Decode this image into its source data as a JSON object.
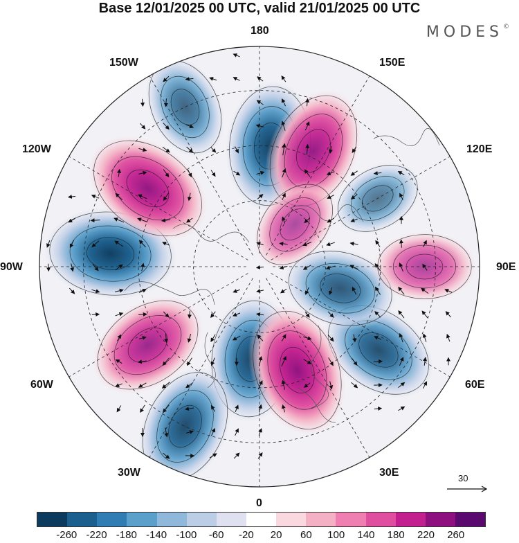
{
  "title": "Base 12/01/2025 00 UTC, valid 21/01/2025 00 UTC",
  "brand": "MODES",
  "brand_mark": "©",
  "longitude_labels": {
    "deg180": "180",
    "deg150e": "150E",
    "deg120e": "120E",
    "deg90e": "90E",
    "deg60e": "60E",
    "deg30e": "30E",
    "deg0": "0",
    "deg30w": "30W",
    "deg60w": "60W",
    "deg90w": "90W",
    "deg120w": "120W",
    "deg150w": "150W"
  },
  "vector_scale_label": "30",
  "colorbar": {
    "colors": [
      "#0d3b5e",
      "#1b5f8e",
      "#2f7db3",
      "#5b9fcb",
      "#8fb8db",
      "#bccde6",
      "#dfe1f0",
      "#ffffff",
      "#f9d9df",
      "#f4b0c4",
      "#ee7fb0",
      "#e04f9f",
      "#c21f8f",
      "#8e0f7e",
      "#5a0a6e"
    ],
    "tick_labels": [
      "-260",
      "-220",
      "-180",
      "-140",
      "-100",
      "-60",
      "-20",
      "20",
      "60",
      "100",
      "140",
      "180",
      "220",
      "260"
    ]
  },
  "anomaly_centers": [
    {
      "sign": "negative",
      "strength": 0.95,
      "lon": -95,
      "colat": 0.68
    },
    {
      "sign": "negative",
      "strength": 0.9,
      "lon": 175,
      "colat": 0.55
    },
    {
      "sign": "negative",
      "strength": 0.5,
      "lon": -155,
      "colat": 0.8
    },
    {
      "sign": "negative",
      "strength": 0.85,
      "lon": -5,
      "colat": 0.42
    },
    {
      "sign": "negative",
      "strength": 0.8,
      "lon": -25,
      "colat": 0.8
    },
    {
      "sign": "negative",
      "strength": 0.75,
      "lon": 55,
      "colat": 0.66
    },
    {
      "sign": "negative",
      "strength": 0.65,
      "lon": 75,
      "colat": 0.38
    },
    {
      "sign": "negative",
      "strength": 0.3,
      "lon": 120,
      "colat": 0.62
    },
    {
      "sign": "positive",
      "strength": 0.9,
      "lon": -125,
      "colat": 0.62
    },
    {
      "sign": "positive",
      "strength": 0.85,
      "lon": 155,
      "colat": 0.58
    },
    {
      "sign": "positive",
      "strength": 0.75,
      "lon": -55,
      "colat": 0.62
    },
    {
      "sign": "positive",
      "strength": 0.95,
      "lon": 20,
      "colat": 0.5
    },
    {
      "sign": "positive",
      "strength": 0.45,
      "lon": 90,
      "colat": 0.75
    },
    {
      "sign": "positive",
      "strength": 0.4,
      "lon": 140,
      "colat": 0.25
    }
  ]
}
